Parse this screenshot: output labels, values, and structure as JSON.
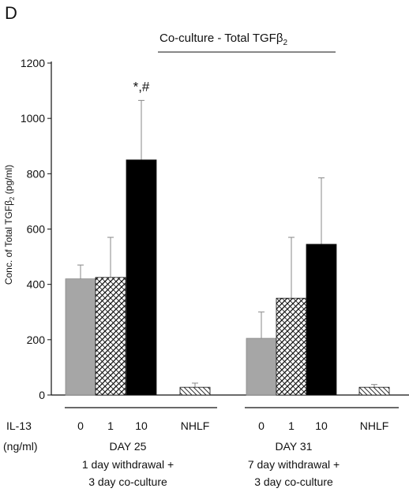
{
  "chart_data": {
    "type": "bar",
    "panel_label": "D",
    "title": "Co-culture - Total TGFβ",
    "title_subscript": "2",
    "ylabel": "Conc. of Total TGFβ",
    "ylabel_subscript": "2",
    "ylabel_unit": "(pg/ml)",
    "ylim": [
      0,
      1200
    ],
    "yticks": [
      "0",
      "200",
      "400",
      "600",
      "800",
      "1000",
      "1200"
    ],
    "ytick_values": [
      0,
      200,
      400,
      600,
      800,
      1000,
      1200
    ],
    "x_row_label": "IL-13",
    "x_row_unit": "(ng/ml)",
    "groups": [
      {
        "day": "DAY 25",
        "desc_line1": "1 day withdrawal +",
        "desc_line2": "3 day co-culture",
        "bars": [
          {
            "label": "0",
            "value": 420,
            "error": 50,
            "fill": "gray"
          },
          {
            "label": "1",
            "value": 425,
            "error": 145,
            "fill": "crosshatch"
          },
          {
            "label": "10",
            "value": 850,
            "error": 215,
            "fill": "black",
            "annotation": "*,#"
          },
          {
            "label": "NHLF",
            "value": 28,
            "error": 15,
            "fill": "diagonal"
          }
        ]
      },
      {
        "day": "DAY 31",
        "desc_line1": "7 day withdrawal +",
        "desc_line2": "3 day co-culture",
        "bars": [
          {
            "label": "0",
            "value": 205,
            "error": 95,
            "fill": "gray"
          },
          {
            "label": "1",
            "value": 350,
            "error": 220,
            "fill": "crosshatch"
          },
          {
            "label": "10",
            "value": 545,
            "error": 240,
            "fill": "black"
          },
          {
            "label": "NHLF",
            "value": 28,
            "error": 10,
            "fill": "diagonal"
          }
        ]
      }
    ],
    "colors": {
      "gray": "#a6a6a6",
      "black": "#000000",
      "axis": "#111111"
    }
  }
}
